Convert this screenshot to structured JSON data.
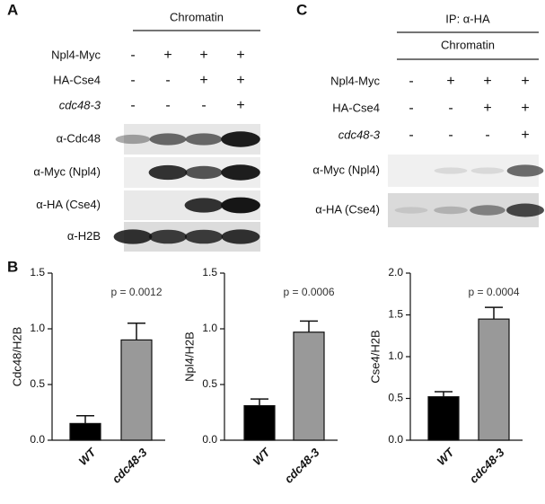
{
  "panel_a": {
    "label": "A",
    "header": "Chromatin",
    "rows": [
      {
        "label": "Npl4-Myc",
        "signs": [
          "-",
          "+",
          "+",
          "+"
        ]
      },
      {
        "label": "HA-Cse4",
        "signs": [
          "-",
          "-",
          "+",
          "+"
        ]
      },
      {
        "label": "cdc48-3",
        "signs": [
          "-",
          "-",
          "-",
          "+"
        ]
      }
    ],
    "blots": [
      "α-Cdc48",
      "α-Myc (Npl4)",
      "α-HA (Cse4)",
      "α-H2B"
    ]
  },
  "panel_c": {
    "label": "C",
    "header": "IP: α-HA",
    "subheader": "Chromatin",
    "rows": [
      {
        "label": "Npl4-Myc",
        "signs": [
          "-",
          "+",
          "+",
          "+"
        ]
      },
      {
        "label": "HA-Cse4",
        "signs": [
          "-",
          "-",
          "+",
          "+"
        ]
      },
      {
        "label": "cdc48-3",
        "signs": [
          "-",
          "-",
          "-",
          "+"
        ]
      }
    ],
    "blots": [
      "α-Myc (Npl4)",
      "α-HA (Cse4)"
    ]
  },
  "panel_b": {
    "label": "B"
  },
  "chart_data": [
    {
      "type": "bar",
      "y_label": "Cdc48/H2B",
      "categories": [
        "WT",
        "cdc48-3"
      ],
      "values": [
        0.15,
        0.9
      ],
      "errors": [
        0.07,
        0.15
      ],
      "colors": [
        "#000000",
        "#999999"
      ],
      "ylim": [
        0,
        1.5
      ],
      "yticks": [
        {
          "value": 0,
          "label": "0.0"
        },
        0.5,
        {
          "value": 1,
          "label": "1.0"
        },
        1.5
      ],
      "annotation": "p = 0.0012"
    },
    {
      "type": "bar",
      "y_label": "Npl4/H2B",
      "categories": [
        "WT",
        "cdc48-3"
      ],
      "values": [
        0.31,
        0.97
      ],
      "errors": [
        0.06,
        0.1
      ],
      "colors": [
        "#000000",
        "#999999"
      ],
      "ylim": [
        0,
        1.5
      ],
      "yticks": [
        {
          "value": 0,
          "label": "0.0"
        },
        0.5,
        {
          "value": 1,
          "label": "1.0"
        },
        1.5
      ],
      "annotation": "p = 0.0006"
    },
    {
      "type": "bar",
      "y_label": "Cse4/H2B",
      "categories": [
        "WT",
        "cdc48-3"
      ],
      "values": [
        0.52,
        1.45
      ],
      "errors": [
        0.06,
        0.14
      ],
      "colors": [
        "#000000",
        "#999999"
      ],
      "ylim": [
        0,
        2
      ],
      "yticks": [
        {
          "value": 0,
          "label": "0.0"
        },
        0.5,
        {
          "value": 1,
          "label": "1.0"
        },
        1.5,
        {
          "value": 2,
          "label": "2.0"
        }
      ],
      "annotation": "p = 0.0004"
    }
  ]
}
